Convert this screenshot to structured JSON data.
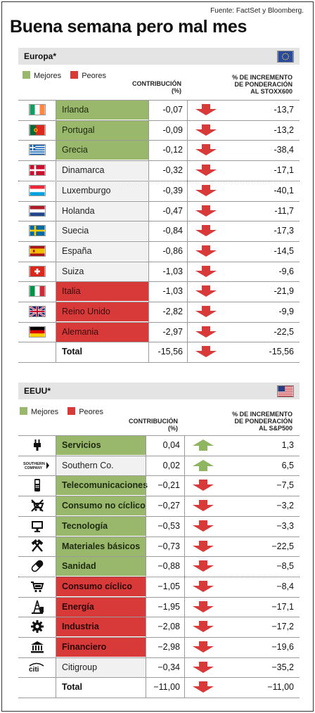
{
  "source": "Fuente: FactSet y Bloomberg.",
  "title": "Buena semana pero mal mes",
  "colors": {
    "best": "#99b86b",
    "worst": "#d83a3a",
    "neutral": "#f1f1f1",
    "arrow_down": "#d83a3a",
    "arrow_up": "#8fb560"
  },
  "europe": {
    "name": "Europa*",
    "legend": {
      "best": "Mejores",
      "worst": "Peores"
    },
    "col_contrib": [
      "CONTRIBUCIÓN",
      "(%)"
    ],
    "col_pct": [
      "% DE INCREMENTO",
      "DE PONDERACIÓN",
      "AL STOXX600"
    ]
  },
  "usa": {
    "name": "EEUU*",
    "legend": {
      "best": "Mejores",
      "worst": "Peores"
    },
    "col_contrib": [
      "CONTRIBUCIÓN",
      "(%)"
    ],
    "col_pct": [
      "% DE INCREMENTO",
      "DE PONDERACIÓN",
      "AL S&P500"
    ],
    "logo_southern": [
      "SOUTHERN",
      "COMPANY"
    ],
    "logo_citi": "citi"
  },
  "chart_data": [
    {
      "type": "table",
      "title": "Europa*",
      "columns": [
        "",
        "CONTRIBUCIÓN (%)",
        "",
        "% DE INCREMENTO DE PONDERACIÓN AL STOXX600"
      ],
      "rows": [
        {
          "icon": "ireland-flag-icon",
          "label": "Irlanda",
          "contrib": "-0,07",
          "trend": "down",
          "pct": "-13,7",
          "status": "best"
        },
        {
          "icon": "portugal-flag-icon",
          "label": "Portugal",
          "contrib": "-0,09",
          "trend": "down",
          "pct": "-13,2",
          "status": "best"
        },
        {
          "icon": "greece-flag-icon",
          "label": "Grecia",
          "contrib": "-0,12",
          "trend": "down",
          "pct": "-38,4",
          "status": "best"
        },
        {
          "icon": "denmark-flag-icon",
          "label": "Dinamarca",
          "contrib": "-0,32",
          "trend": "down",
          "pct": "-17,1",
          "status": "neutral"
        },
        {
          "icon": "luxembourg-flag-icon",
          "label": "Luxemburgo",
          "contrib": "-0,39",
          "trend": "down",
          "pct": "-40,1",
          "status": "neutral"
        },
        {
          "icon": "netherlands-flag-icon",
          "label": "Holanda",
          "contrib": "-0,47",
          "trend": "down",
          "pct": "-11,7",
          "status": "neutral"
        },
        {
          "icon": "sweden-flag-icon",
          "label": "Suecia",
          "contrib": "-0,84",
          "trend": "down",
          "pct": "-17,3",
          "status": "neutral"
        },
        {
          "icon": "spain-flag-icon",
          "label": "España",
          "contrib": "-0,86",
          "trend": "down",
          "pct": "-14,5",
          "status": "neutral"
        },
        {
          "icon": "switzerland-flag-icon",
          "label": "Suiza",
          "contrib": "-1,03",
          "trend": "down",
          "pct": "-9,6",
          "status": "neutral"
        },
        {
          "icon": "italy-flag-icon",
          "label": "Italia",
          "contrib": "-1,03",
          "trend": "down",
          "pct": "-21,9",
          "status": "worst"
        },
        {
          "icon": "uk-flag-icon",
          "label": "Reino Unido",
          "contrib": "-2,82",
          "trend": "down",
          "pct": "-9,9",
          "status": "worst"
        },
        {
          "icon": "germany-flag-icon",
          "label": "Alemania",
          "contrib": "-2,97",
          "trend": "down",
          "pct": "-22,5",
          "status": "worst"
        },
        {
          "icon": "",
          "label": "Total",
          "contrib": "-15,56",
          "trend": "down",
          "pct": "-15,56",
          "status": "total"
        }
      ]
    },
    {
      "type": "table",
      "title": "EEUU*",
      "columns": [
        "",
        "CONTRIBUCIÓN (%)",
        "",
        "% DE INCREMENTO DE PONDERACIÓN AL S&P500"
      ],
      "rows": [
        {
          "icon": "plug-icon",
          "label": "Servicios",
          "contrib": "0,04",
          "trend": "up",
          "pct": "1,3",
          "status": "best"
        },
        {
          "icon": "southern-company-logo-icon",
          "label": "Southern Co.",
          "contrib": "0,02",
          "trend": "up",
          "pct": "6,5",
          "status": "neutral"
        },
        {
          "icon": "mobile-phone-icon",
          "label": "Telecomunicaciones",
          "contrib": "−0,21",
          "trend": "down",
          "pct": "−7,5",
          "status": "best"
        },
        {
          "icon": "crossed-cart-icon",
          "label": "Consumo no cíclico",
          "contrib": "−0,27",
          "trend": "down",
          "pct": "−3,2",
          "status": "best"
        },
        {
          "icon": "monitor-icon",
          "label": "Tecnología",
          "contrib": "−0,53",
          "trend": "down",
          "pct": "−3,3",
          "status": "best"
        },
        {
          "icon": "crossed-hammers-icon",
          "label": "Materiales básicos",
          "contrib": "−0,73",
          "trend": "down",
          "pct": "−22,5",
          "status": "best"
        },
        {
          "icon": "pill-icon",
          "label": "Sanidad",
          "contrib": "−0,88",
          "trend": "down",
          "pct": "−8,5",
          "status": "best"
        },
        {
          "icon": "shopping-cart-icon",
          "label": "Consumo cíclico",
          "contrib": "−1,05",
          "trend": "down",
          "pct": "−8,4",
          "status": "worst"
        },
        {
          "icon": "oil-rig-icon",
          "label": "Energía",
          "contrib": "−1,95",
          "trend": "down",
          "pct": "−17,1",
          "status": "worst"
        },
        {
          "icon": "gear-icon",
          "label": "Industria",
          "contrib": "−2,08",
          "trend": "down",
          "pct": "−17,2",
          "status": "worst"
        },
        {
          "icon": "bank-icon",
          "label": "Financiero",
          "contrib": "−2,98",
          "trend": "down",
          "pct": "−19,6",
          "status": "worst"
        },
        {
          "icon": "citi-logo-icon",
          "label": "Citigroup",
          "contrib": "−0,34",
          "trend": "down",
          "pct": "−35,2",
          "status": "neutral"
        },
        {
          "icon": "",
          "label": "Total",
          "contrib": "−11,00",
          "trend": "down",
          "pct": "−11,00",
          "status": "total"
        }
      ]
    }
  ]
}
